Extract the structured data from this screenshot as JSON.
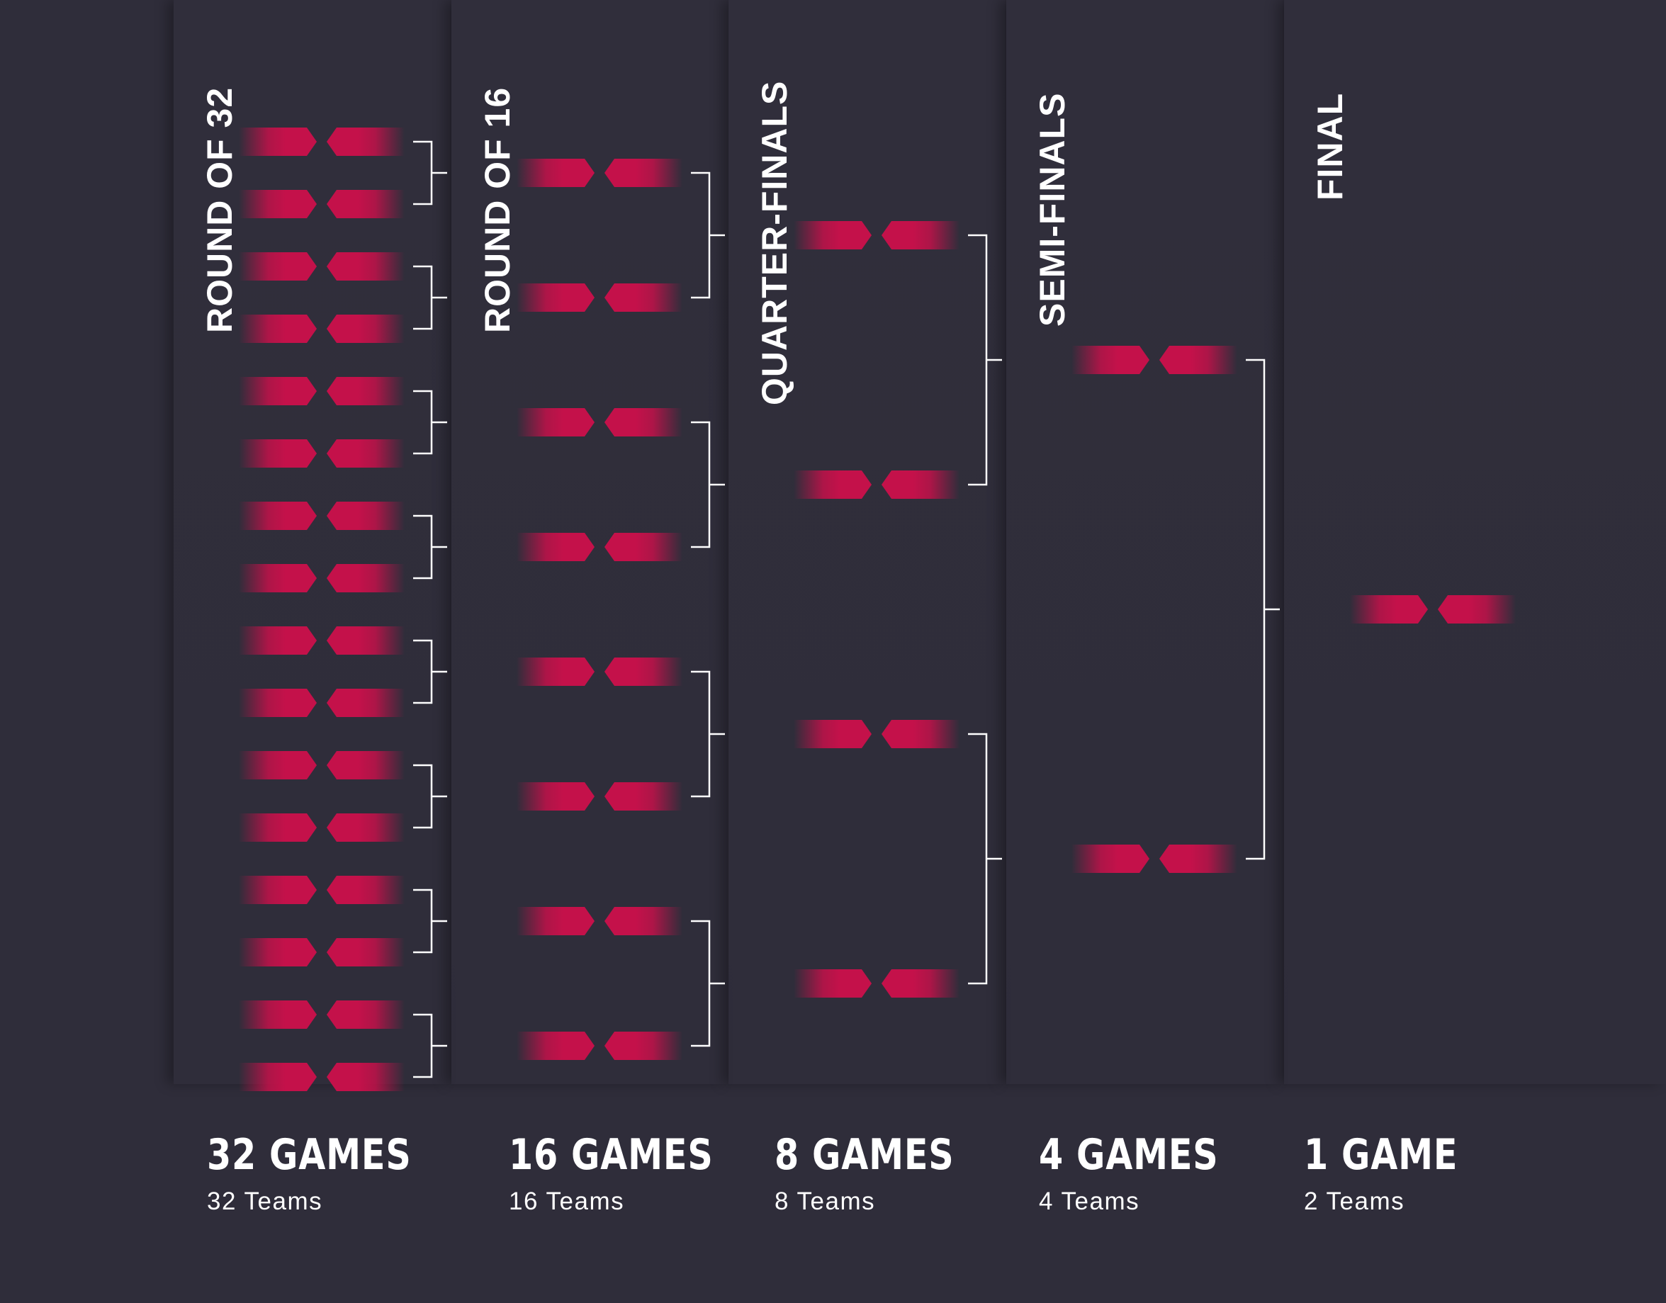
{
  "colors": {
    "background": "#2f2d3a",
    "team_slot": "#c4114a",
    "connector": "#ffffff",
    "text": "#ffffff"
  },
  "rounds": [
    {
      "title": "ROUND OF 32",
      "games": "32 GAMES",
      "teams": "32 Teams",
      "match_count": 16
    },
    {
      "title": "ROUND OF 16",
      "games": "16 GAMES",
      "teams": "16 Teams",
      "match_count": 8
    },
    {
      "title": "QUARTER-FINALS",
      "games": "8 GAMES",
      "teams": "8 Teams",
      "match_count": 4
    },
    {
      "title": "SEMI-FINALS",
      "games": "4 GAMES",
      "teams": "4 Teams",
      "match_count": 2
    },
    {
      "title": "FINAL",
      "games": "1 GAME",
      "teams": "2 Teams",
      "match_count": 1
    }
  ]
}
